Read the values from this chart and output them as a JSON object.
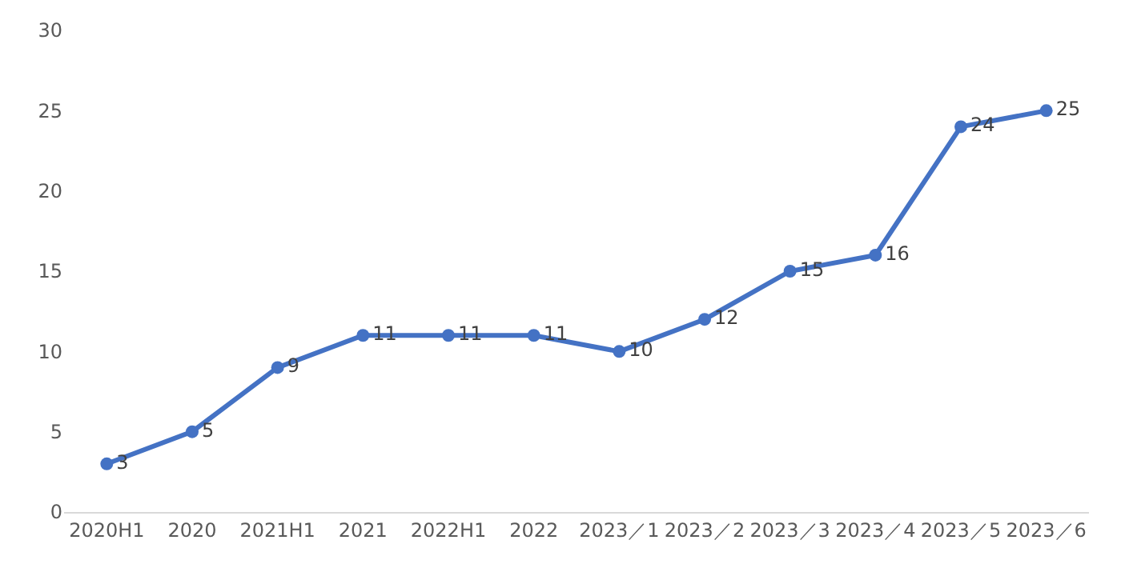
{
  "chart_data": {
    "type": "line",
    "categories": [
      "2020H1",
      "2020",
      "2021H1",
      "2021",
      "2022H1",
      "2022",
      "2023／1",
      "2023／2",
      "2023／3",
      "2023／4",
      "2023／5",
      "2023／6"
    ],
    "values": [
      3,
      5,
      9,
      11,
      11,
      11,
      10,
      12,
      15,
      16,
      24,
      25
    ],
    "color": "#4472c4",
    "marker": "circle",
    "line_style": "solid",
    "data_labels": true,
    "ylim": [
      0,
      30
    ],
    "yticks": [
      0,
      5,
      10,
      15,
      20,
      25,
      30
    ],
    "grid": false,
    "legend": false
  }
}
